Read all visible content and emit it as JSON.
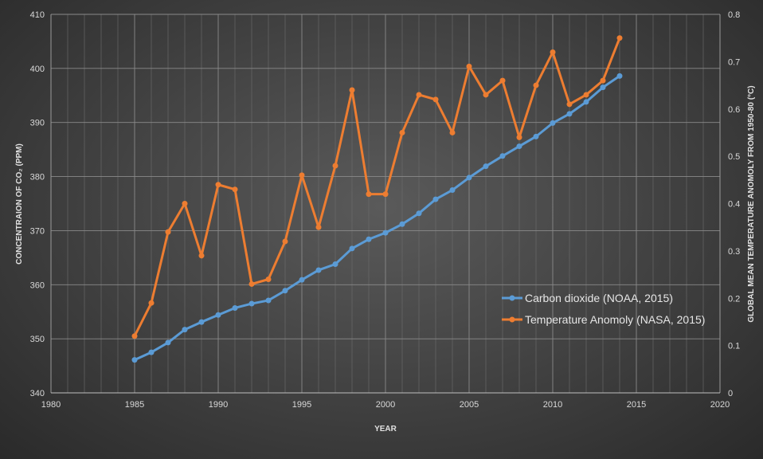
{
  "chart_data": {
    "type": "line",
    "xlabel": "YEAR",
    "ylabel_left": "CONCENTRAION OF CO₂ (PPM)",
    "ylabel_right": "GLOBAL MEAN TEMPERATURE ANOMOLY  FROM 1950-80 (°C)",
    "xlim": [
      1980,
      2020
    ],
    "xticks": [
      1980,
      1985,
      1990,
      1995,
      2000,
      2005,
      2010,
      2015,
      2020
    ],
    "ylim_left": [
      340,
      410
    ],
    "yticks_left": [
      340,
      350,
      360,
      370,
      380,
      390,
      400,
      410
    ],
    "ylim_right": [
      0,
      0.8
    ],
    "yticks_right": [
      0,
      0.1,
      0.2,
      0.3,
      0.4,
      0.5,
      0.6,
      0.7,
      0.8
    ],
    "grid": true,
    "legend_position": "lower-right",
    "series": [
      {
        "name": "Carbon dioxide (NOAA, 2015)",
        "axis": "left",
        "color": "#5b9bd5",
        "x": [
          1985,
          1986,
          1987,
          1988,
          1989,
          1990,
          1991,
          1992,
          1993,
          1994,
          1995,
          1996,
          1997,
          1998,
          1999,
          2000,
          2001,
          2002,
          2003,
          2004,
          2005,
          2006,
          2007,
          2008,
          2009,
          2010,
          2011,
          2012,
          2013,
          2014
        ],
        "y": [
          346.1,
          347.5,
          349.3,
          351.7,
          353.1,
          354.4,
          355.7,
          356.5,
          357.1,
          358.9,
          360.9,
          362.7,
          363.8,
          366.7,
          368.4,
          369.6,
          371.2,
          373.2,
          375.8,
          377.5,
          379.8,
          381.9,
          383.8,
          385.6,
          387.4,
          389.9,
          391.6,
          393.8,
          396.5,
          398.6
        ]
      },
      {
        "name": "Temperature Anomoly (NASA, 2015)",
        "axis": "right",
        "color": "#ed7d31",
        "x": [
          1985,
          1986,
          1987,
          1988,
          1989,
          1990,
          1991,
          1992,
          1993,
          1994,
          1995,
          1996,
          1997,
          1998,
          1999,
          2000,
          2001,
          2002,
          2003,
          2004,
          2005,
          2006,
          2007,
          2008,
          2009,
          2010,
          2011,
          2012,
          2013,
          2014
        ],
        "y": [
          0.12,
          0.19,
          0.34,
          0.4,
          0.29,
          0.44,
          0.43,
          0.23,
          0.24,
          0.32,
          0.46,
          0.35,
          0.48,
          0.64,
          0.42,
          0.42,
          0.55,
          0.63,
          0.62,
          0.55,
          0.69,
          0.63,
          0.66,
          0.54,
          0.65,
          0.72,
          0.61,
          0.63,
          0.66,
          0.75
        ]
      }
    ]
  }
}
